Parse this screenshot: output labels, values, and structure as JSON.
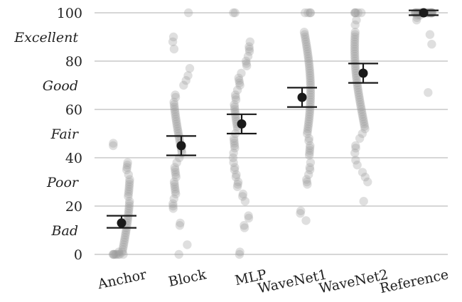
{
  "chart_data": {
    "type": "scatter",
    "title": "",
    "xlabel": "",
    "ylabel": "",
    "ylim": [
      0,
      100
    ],
    "yticks": [
      0,
      20,
      40,
      60,
      80,
      100
    ],
    "grid": true,
    "quality_labels": [
      {
        "label": "Bad",
        "y": 10
      },
      {
        "label": "Poor",
        "y": 30
      },
      {
        "label": "Fair",
        "y": 50
      },
      {
        "label": "Good",
        "y": 70
      },
      {
        "label": "Excellent",
        "y": 90
      }
    ],
    "categories": [
      "Anchor",
      "Block",
      "MLP",
      "WaveNet1",
      "WaveNet2",
      "Reference"
    ],
    "means": [
      13,
      45,
      54,
      65,
      75,
      100
    ],
    "ci": [
      [
        11,
        16
      ],
      [
        41,
        49
      ],
      [
        50,
        58
      ],
      [
        61,
        69
      ],
      [
        71,
        79
      ],
      [
        99,
        101
      ]
    ],
    "points": [
      [
        46,
        45,
        38,
        37,
        36,
        35,
        33,
        31,
        30,
        29,
        28,
        27,
        26,
        25,
        24,
        22,
        21,
        20,
        19,
        18,
        17,
        16,
        15,
        14,
        13,
        12,
        11,
        10,
        9,
        8,
        7,
        6,
        5,
        4,
        3,
        2,
        1,
        1,
        0,
        0,
        0,
        0,
        0,
        0,
        0,
        0
      ],
      [
        100,
        90,
        88,
        85,
        77,
        74,
        72,
        70,
        66,
        65,
        63,
        62,
        61,
        60,
        59,
        58,
        57,
        56,
        55,
        54,
        53,
        52,
        51,
        50,
        49,
        48,
        47,
        46,
        45,
        44,
        43,
        42,
        40,
        38,
        36,
        35,
        34,
        33,
        32,
        30,
        29,
        28,
        27,
        26,
        25,
        23,
        21,
        20,
        19,
        13,
        12,
        4,
        0
      ],
      [
        100,
        100,
        88,
        86,
        85,
        84,
        82,
        80,
        79,
        78,
        75,
        73,
        72,
        71,
        70,
        68,
        66,
        65,
        64,
        62,
        61,
        60,
        59,
        58,
        57,
        56,
        55,
        54,
        53,
        52,
        50,
        48,
        47,
        46,
        45,
        44,
        42,
        40,
        38,
        36,
        35,
        33,
        32,
        30,
        29,
        28,
        25,
        24,
        22,
        16,
        15,
        12,
        11,
        1,
        0
      ],
      [
        100,
        100,
        100,
        100,
        92,
        91,
        90,
        89,
        88,
        87,
        86,
        85,
        84,
        83,
        82,
        81,
        80,
        79,
        78,
        77,
        76,
        75,
        74,
        73,
        72,
        71,
        70,
        69,
        68,
        67,
        66,
        65,
        64,
        63,
        62,
        61,
        60,
        59,
        58,
        57,
        56,
        55,
        54,
        53,
        52,
        51,
        50,
        48,
        47,
        45,
        44,
        43,
        42,
        41,
        38,
        36,
        35,
        33,
        31,
        30,
        29,
        18,
        17,
        14
      ],
      [
        100,
        100,
        100,
        100,
        100,
        97,
        95,
        92,
        91,
        90,
        89,
        88,
        87,
        86,
        85,
        84,
        83,
        82,
        81,
        80,
        79,
        78,
        77,
        76,
        75,
        74,
        73,
        72,
        71,
        70,
        69,
        68,
        67,
        66,
        65,
        64,
        63,
        62,
        61,
        60,
        59,
        58,
        57,
        56,
        55,
        54,
        53,
        52,
        50,
        48,
        45,
        44,
        42,
        39,
        37,
        34,
        32,
        30,
        22
      ],
      [
        100,
        100,
        100,
        100,
        100,
        100,
        100,
        100,
        100,
        100,
        100,
        100,
        100,
        100,
        100,
        100,
        100,
        100,
        100,
        100,
        100,
        100,
        99,
        99,
        98,
        97,
        91,
        87,
        67
      ]
    ]
  }
}
